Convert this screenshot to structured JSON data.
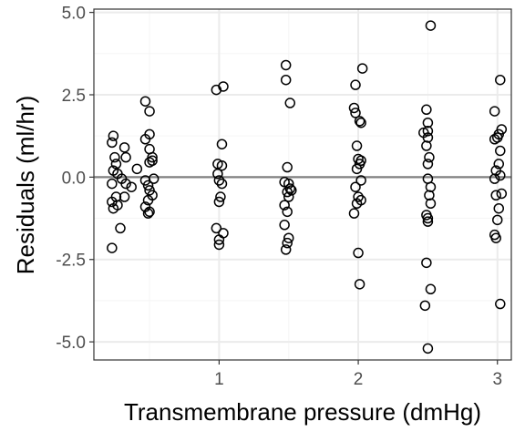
{
  "colors": {
    "background": "#ffffff",
    "panel_border": "#333333",
    "grid_major": "#ebebeb",
    "grid_minor": "#f5f5f5",
    "reference_line": "#808080",
    "point_stroke": "#000000",
    "tick_text": "#4d4d4d",
    "axis_title": "#000000"
  },
  "chart_data": {
    "type": "scatter",
    "title": "",
    "xlabel": "Transmembrane pressure (dmHg)",
    "ylabel": "Residuals (ml/hr)",
    "xlim": [
      0.1,
      3.1
    ],
    "ylim": [
      -5.55,
      5.1
    ],
    "x_ticks": [
      1,
      2,
      3
    ],
    "x_tick_labels": [
      "1",
      "2",
      "3"
    ],
    "y_ticks": [
      5.0,
      2.5,
      0.0,
      -2.5,
      -5.0
    ],
    "y_tick_labels": [
      "5.0",
      "2.5",
      "0.0",
      "-2.5",
      "-5.0"
    ],
    "grid": true,
    "reference_line_y": 0,
    "marker": "open-circle",
    "points": [
      {
        "x": 0.24,
        "y": 1.25
      },
      {
        "x": 0.23,
        "y": 1.05
      },
      {
        "x": 0.25,
        "y": 0.6
      },
      {
        "x": 0.26,
        "y": 0.4
      },
      {
        "x": 0.24,
        "y": 0.2
      },
      {
        "x": 0.27,
        "y": 0.1
      },
      {
        "x": 0.3,
        "y": -0.05
      },
      {
        "x": 0.23,
        "y": -0.2
      },
      {
        "x": 0.33,
        "y": -0.2
      },
      {
        "x": 0.37,
        "y": -0.3
      },
      {
        "x": 0.26,
        "y": -0.6
      },
      {
        "x": 0.32,
        "y": -0.6
      },
      {
        "x": 0.23,
        "y": -0.75
      },
      {
        "x": 0.24,
        "y": -0.95
      },
      {
        "x": 0.27,
        "y": -0.85
      },
      {
        "x": 0.29,
        "y": -1.55
      },
      {
        "x": 0.23,
        "y": -2.15
      },
      {
        "x": 0.32,
        "y": 0.9
      },
      {
        "x": 0.33,
        "y": 0.6
      },
      {
        "x": 0.41,
        "y": 0.25
      },
      {
        "x": 0.47,
        "y": 2.3
      },
      {
        "x": 0.5,
        "y": 2.0
      },
      {
        "x": 0.5,
        "y": 1.3
      },
      {
        "x": 0.47,
        "y": 1.15
      },
      {
        "x": 0.5,
        "y": 0.85
      },
      {
        "x": 0.52,
        "y": 0.6
      },
      {
        "x": 0.5,
        "y": 0.45
      },
      {
        "x": 0.52,
        "y": 0.5
      },
      {
        "x": 0.47,
        "y": -0.1
      },
      {
        "x": 0.53,
        "y": -0.05
      },
      {
        "x": 0.49,
        "y": -0.25
      },
      {
        "x": 0.5,
        "y": -0.4
      },
      {
        "x": 0.52,
        "y": -0.55
      },
      {
        "x": 0.49,
        "y": -0.7
      },
      {
        "x": 0.47,
        "y": -0.9
      },
      {
        "x": 0.5,
        "y": -1.05
      },
      {
        "x": 0.49,
        "y": -1.1
      },
      {
        "x": 0.98,
        "y": 2.65
      },
      {
        "x": 1.03,
        "y": 2.75
      },
      {
        "x": 1.02,
        "y": 1.0
      },
      {
        "x": 0.99,
        "y": 0.4
      },
      {
        "x": 1.02,
        "y": 0.35
      },
      {
        "x": 0.99,
        "y": 0.1
      },
      {
        "x": 1.0,
        "y": -0.1
      },
      {
        "x": 1.02,
        "y": -0.2
      },
      {
        "x": 1.01,
        "y": -0.6
      },
      {
        "x": 1.0,
        "y": -0.75
      },
      {
        "x": 0.98,
        "y": -1.55
      },
      {
        "x": 1.03,
        "y": -1.7
      },
      {
        "x": 1.0,
        "y": -1.9
      },
      {
        "x": 1.0,
        "y": -2.05
      },
      {
        "x": 1.48,
        "y": 3.4
      },
      {
        "x": 1.48,
        "y": 2.95
      },
      {
        "x": 1.51,
        "y": 2.25
      },
      {
        "x": 1.49,
        "y": 0.3
      },
      {
        "x": 1.47,
        "y": -0.15
      },
      {
        "x": 1.5,
        "y": -0.2
      },
      {
        "x": 1.51,
        "y": -0.35
      },
      {
        "x": 1.49,
        "y": -0.45
      },
      {
        "x": 1.5,
        "y": -0.6
      },
      {
        "x": 1.47,
        "y": -0.85
      },
      {
        "x": 1.49,
        "y": -1.05
      },
      {
        "x": 1.47,
        "y": -1.45
      },
      {
        "x": 1.5,
        "y": -1.85
      },
      {
        "x": 1.49,
        "y": -2.0
      },
      {
        "x": 1.48,
        "y": -2.2
      },
      {
        "x": 1.52,
        "y": -0.4
      },
      {
        "x": 1.98,
        "y": 2.8
      },
      {
        "x": 2.03,
        "y": 3.3
      },
      {
        "x": 1.97,
        "y": 2.1
      },
      {
        "x": 1.98,
        "y": 1.95
      },
      {
        "x": 2.01,
        "y": 1.7
      },
      {
        "x": 2.02,
        "y": 1.65
      },
      {
        "x": 1.99,
        "y": 0.95
      },
      {
        "x": 2.0,
        "y": 0.55
      },
      {
        "x": 2.02,
        "y": 0.5
      },
      {
        "x": 2.01,
        "y": 0.4
      },
      {
        "x": 1.99,
        "y": 0.25
      },
      {
        "x": 2.02,
        "y": -0.1
      },
      {
        "x": 1.98,
        "y": -0.3
      },
      {
        "x": 2.0,
        "y": -0.6
      },
      {
        "x": 2.02,
        "y": -0.7
      },
      {
        "x": 1.99,
        "y": -0.8
      },
      {
        "x": 1.97,
        "y": -1.1
      },
      {
        "x": 2.0,
        "y": -2.3
      },
      {
        "x": 2.01,
        "y": -3.25
      },
      {
        "x": 2.52,
        "y": 4.6
      },
      {
        "x": 2.49,
        "y": 2.05
      },
      {
        "x": 2.5,
        "y": 1.65
      },
      {
        "x": 2.47,
        "y": 1.35
      },
      {
        "x": 2.5,
        "y": 1.4
      },
      {
        "x": 2.5,
        "y": 1.2
      },
      {
        "x": 2.49,
        "y": 0.95
      },
      {
        "x": 2.51,
        "y": 0.6
      },
      {
        "x": 2.5,
        "y": 0.4
      },
      {
        "x": 2.5,
        "y": -0.05
      },
      {
        "x": 2.52,
        "y": -0.3
      },
      {
        "x": 2.51,
        "y": -0.55
      },
      {
        "x": 2.52,
        "y": -0.8
      },
      {
        "x": 2.49,
        "y": -1.15
      },
      {
        "x": 2.5,
        "y": -1.25
      },
      {
        "x": 2.5,
        "y": -1.35
      },
      {
        "x": 2.49,
        "y": -2.6
      },
      {
        "x": 2.52,
        "y": -3.4
      },
      {
        "x": 2.48,
        "y": -3.9
      },
      {
        "x": 2.5,
        "y": -5.2
      },
      {
        "x": 3.02,
        "y": 2.95
      },
      {
        "x": 2.98,
        "y": 2.0
      },
      {
        "x": 3.03,
        "y": 1.45
      },
      {
        "x": 3.01,
        "y": 1.3
      },
      {
        "x": 2.98,
        "y": 1.15
      },
      {
        "x": 3.0,
        "y": 1.2
      },
      {
        "x": 3.02,
        "y": 0.8
      },
      {
        "x": 3.01,
        "y": 0.4
      },
      {
        "x": 2.99,
        "y": 0.2
      },
      {
        "x": 3.02,
        "y": 0.05
      },
      {
        "x": 2.98,
        "y": -0.05
      },
      {
        "x": 3.03,
        "y": -0.5
      },
      {
        "x": 2.99,
        "y": -0.55
      },
      {
        "x": 3.01,
        "y": -0.95
      },
      {
        "x": 3.0,
        "y": -1.3
      },
      {
        "x": 2.98,
        "y": -1.75
      },
      {
        "x": 2.99,
        "y": -1.85
      },
      {
        "x": 3.02,
        "y": -3.85
      }
    ]
  }
}
